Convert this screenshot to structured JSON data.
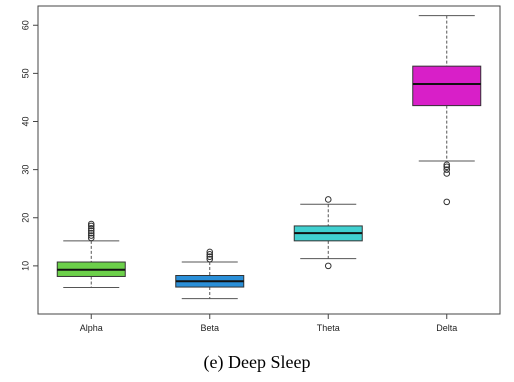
{
  "caption": "(e) Deep Sleep",
  "chart_data": {
    "type": "box",
    "title": "",
    "xlabel": "",
    "ylabel": "",
    "ylim": [
      0,
      64
    ],
    "y_ticks": [
      10,
      20,
      30,
      40,
      50,
      60
    ],
    "grid": false,
    "categories": [
      "Alpha",
      "Beta",
      "Theta",
      "Delta"
    ],
    "boxes": [
      {
        "label": "Alpha",
        "whisker_low": 5.5,
        "q1": 7.8,
        "median": 9.2,
        "q3": 10.8,
        "whisker_high": 15.2,
        "outliers": [
          15.8,
          16.3,
          16.8,
          17.3,
          17.8,
          18.3,
          18.7
        ],
        "color": "#6cd04a"
      },
      {
        "label": "Beta",
        "whisker_low": 3.2,
        "q1": 5.6,
        "median": 6.8,
        "q3": 8.0,
        "whisker_high": 10.8,
        "outliers": [
          11.4,
          11.9,
          12.4,
          12.9
        ],
        "color": "#2a8fd8"
      },
      {
        "label": "Theta",
        "whisker_low": 11.5,
        "q1": 15.2,
        "median": 16.8,
        "q3": 18.3,
        "whisker_high": 22.8,
        "outliers": [
          10.0,
          23.8
        ],
        "color": "#40d0d0"
      },
      {
        "label": "Delta",
        "whisker_low": 31.8,
        "q1": 43.3,
        "median": 47.8,
        "q3": 51.5,
        "whisker_high": 62.0,
        "outliers": [
          29.2,
          30.0,
          30.6,
          31.0,
          23.3
        ],
        "color": "#d81fc8"
      }
    ]
  }
}
